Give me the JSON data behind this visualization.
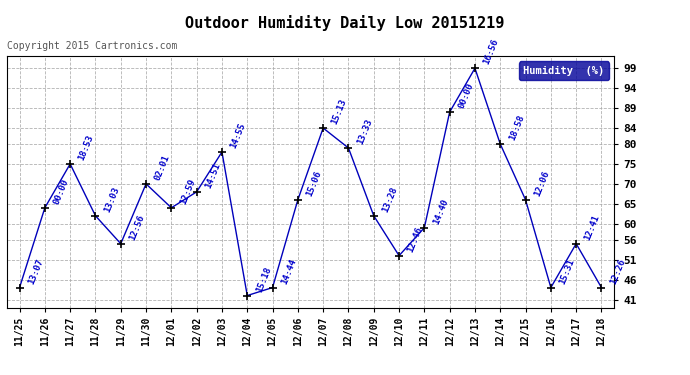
{
  "title": "Outdoor Humidity Daily Low 20151219",
  "copyright": "Copyright 2015 Cartronics.com",
  "legend_label": "Humidity  (%)",
  "dates": [
    "11/25",
    "11/26",
    "11/27",
    "11/28",
    "11/29",
    "11/30",
    "12/01",
    "12/02",
    "12/03",
    "12/04",
    "12/05",
    "12/06",
    "12/07",
    "12/08",
    "12/09",
    "12/10",
    "12/11",
    "12/12",
    "12/13",
    "12/14",
    "12/15",
    "12/16",
    "12/17",
    "12/18"
  ],
  "values": [
    44,
    64,
    75,
    62,
    55,
    70,
    64,
    68,
    78,
    42,
    44,
    66,
    84,
    79,
    62,
    52,
    59,
    88,
    99,
    80,
    66,
    44,
    55,
    44
  ],
  "labels": [
    "13:07",
    "00:00",
    "18:53",
    "13:03",
    "12:56",
    "02:01",
    "12:59",
    "14:51",
    "14:55",
    "15:18",
    "14:44",
    "15:06",
    "15:13",
    "13:33",
    "13:28",
    "12:46",
    "14:40",
    "00:00",
    "16:56",
    "18:58",
    "12:06",
    "15:31",
    "12:41",
    "12:26"
  ],
  "line_color": "#0000bb",
  "marker_color": "#000000",
  "bg_color": "#ffffff",
  "plot_bg": "#ffffff",
  "grid_color": "#aaaaaa",
  "title_color": "#000000",
  "label_color": "#0000cc",
  "yticks": [
    41,
    46,
    51,
    56,
    60,
    65,
    70,
    75,
    80,
    84,
    89,
    94,
    99
  ],
  "ylim": [
    39,
    102
  ],
  "legend_bg": "#000099",
  "legend_fg": "#ffffff"
}
